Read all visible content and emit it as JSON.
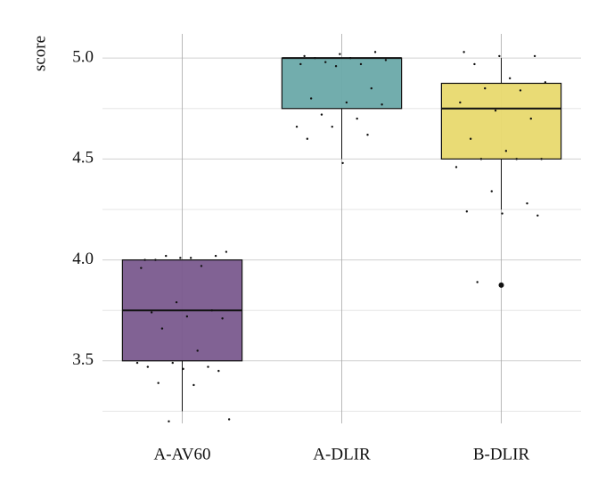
{
  "chart_data": {
    "type": "box",
    "ylabel": "score",
    "categories": [
      "A-AV60",
      "A-DLIR",
      "B-DLIR"
    ],
    "boxes": [
      {
        "min": 3.25,
        "q1": 3.5,
        "median": 3.75,
        "q3": 4.0,
        "max": 4.0,
        "color": "#7a5a8e",
        "outliers": [],
        "points": [
          4.0,
          4.01,
          4.02,
          4.0,
          4.01,
          4.04,
          4.02,
          3.97,
          3.96,
          3.79,
          3.75,
          3.74,
          3.72,
          3.71,
          3.66,
          3.55,
          3.49,
          3.49,
          3.47,
          3.47,
          3.46,
          3.45,
          3.39,
          3.38,
          3.21,
          3.2
        ]
      },
      {
        "min": 4.5,
        "q1": 4.75,
        "median": 5.0,
        "q3": 5.0,
        "max": 5.0,
        "color": "#6aa9a9",
        "outliers": [],
        "points": [
          5.01,
          5.02,
          5.03,
          5.0,
          5.0,
          4.99,
          4.98,
          4.97,
          4.97,
          4.96,
          4.85,
          4.8,
          4.78,
          4.77,
          4.72,
          4.7,
          4.66,
          4.66,
          4.62,
          4.6,
          4.48
        ]
      },
      {
        "min": 4.25,
        "q1": 4.5,
        "median": 4.75,
        "q3": 4.875,
        "max": 5.0,
        "color": "#e8d96e",
        "outliers": [
          3.875
        ],
        "points": [
          5.03,
          5.01,
          5.01,
          4.97,
          4.9,
          4.88,
          4.85,
          4.84,
          4.78,
          4.74,
          4.7,
          4.6,
          4.54,
          4.5,
          4.5,
          4.5,
          4.46,
          4.34,
          4.28,
          4.24,
          4.23,
          4.22,
          3.89
        ]
      }
    ],
    "ylim": [
      3.19,
      5.12
    ],
    "yticks": [
      {
        "value": 3.5,
        "label": "3.5"
      },
      {
        "value": 4.0,
        "label": "4.0"
      },
      {
        "value": 4.5,
        "label": "4.5"
      },
      {
        "value": 5.0,
        "label": "5.0"
      }
    ],
    "minor_yticks": [
      3.25,
      3.75,
      4.25,
      4.75
    ],
    "grid": true
  }
}
